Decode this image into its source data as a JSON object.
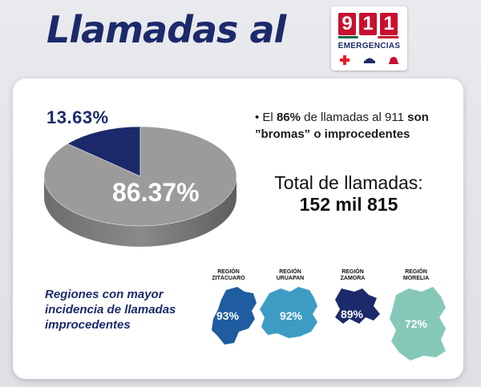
{
  "title": "Llamadas al",
  "logo": {
    "digits": [
      "9",
      "1",
      "1"
    ],
    "text": "EMERGENCIAS",
    "icons": [
      "red-cross-icon",
      "police-cap-icon",
      "fire-helmet-icon"
    ]
  },
  "chart_data": {
    "type": "pie",
    "slices": [
      {
        "label": "13.63%",
        "value": 13.63,
        "color": "#1c2a6b"
      },
      {
        "label": "86.37%",
        "value": 86.37,
        "color": "#9b9b9b"
      }
    ]
  },
  "bullet": {
    "prefix": "• El ",
    "highlight1": "86%",
    "middle": " de llamadas al 911 ",
    "highlight2": "son",
    "line2": "”bromas” o improcedentes"
  },
  "total": {
    "line1": "Total de llamadas:",
    "line2": "152 mil 815"
  },
  "regions_text": {
    "line1": "Regiones con mayor",
    "line2": "incidencia de llamadas",
    "line3": "improcedentes"
  },
  "regions": [
    {
      "label1": "REGIÓN",
      "label2": "ZITÁCUARO",
      "percent": "93%",
      "value": 93,
      "color": "#1f5da0"
    },
    {
      "label1": "REGIÓN",
      "label2": "URUAPAN",
      "percent": "92%",
      "value": 92,
      "color": "#3d9cc4"
    },
    {
      "label1": "REGIÓN",
      "label2": "ZAMORA",
      "percent": "89%",
      "value": 89,
      "color": "#1c2a6b"
    },
    {
      "label1": "REGIÓN",
      "label2": "MORELIA",
      "percent": "72%",
      "value": 72,
      "color": "#86c8b8"
    }
  ]
}
